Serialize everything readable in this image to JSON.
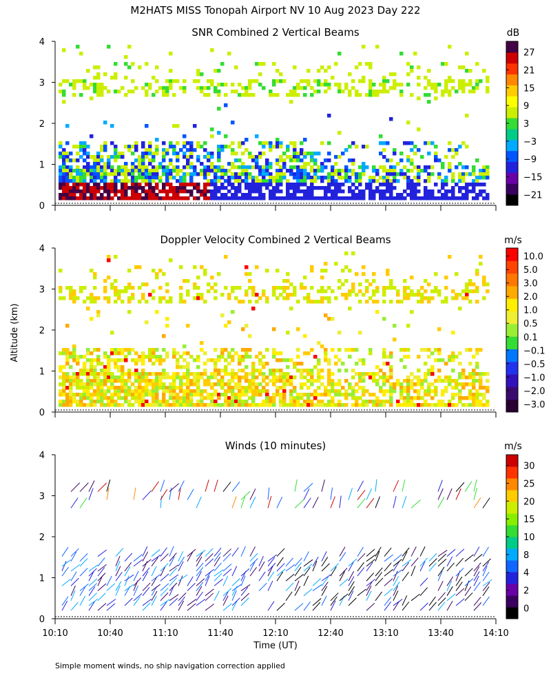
{
  "title": "M2HATS MISS Tonopah Airport NV  10 Aug 2023 Day 222",
  "ylabel": "Altitude (km)",
  "xlabel": "Time (UT)",
  "footnote": "Simple moment winds, no ship navigation correction applied",
  "chart_data": [
    {
      "type": "heatmap",
      "title": "SNR Combined 2 Vertical Beams",
      "colorbar_unit": "dB",
      "colorbar_ticks": [
        "27",
        "21",
        "15",
        "9",
        "3",
        "−3",
        "−9",
        "−15",
        "−21"
      ],
      "colorbar_colors": [
        "#000000",
        "#3a0060",
        "#6a00a8",
        "#2222dd",
        "#0055ff",
        "#00aaff",
        "#00cc88",
        "#33dd33",
        "#ccee00",
        "#ffff00",
        "#ffcc00",
        "#ff8800",
        "#ff3300",
        "#cc0000",
        "#440044"
      ],
      "xlim": [
        "10:10",
        "14:10"
      ],
      "ylim": [
        0,
        4
      ],
      "ytick_labels": [
        "0",
        "1",
        "2",
        "3",
        "4"
      ]
    },
    {
      "type": "heatmap",
      "title": "Doppler Velocity Combined 2 Vertical Beams",
      "colorbar_unit": "m/s",
      "colorbar_ticks": [
        "10.0",
        "5.0",
        "3.0",
        "2.0",
        "1.0",
        "0.5",
        "0.1",
        "−0.1",
        "−0.5",
        "−1.0",
        "−2.0",
        "−3.0"
      ],
      "colorbar_colors": [
        "#2a0033",
        "#3a0a70",
        "#3311bb",
        "#2233ee",
        "#0077ff",
        "#33dd33",
        "#99ee33",
        "#eeee33",
        "#ffee00",
        "#ffaa00",
        "#ff7700",
        "#ff4400",
        "#ff0000"
      ],
      "xlim": [
        "10:10",
        "14:10"
      ],
      "ylim": [
        0,
        4
      ],
      "ytick_labels": [
        "0",
        "1",
        "2",
        "3",
        "4"
      ]
    },
    {
      "type": "scatter",
      "title": "Winds (10 minutes)",
      "colorbar_unit": "m/s",
      "colorbar_ticks": [
        "30",
        "25",
        "20",
        "15",
        "10",
        "8",
        "4",
        "2",
        "0"
      ],
      "colorbar_colors": [
        "#000000",
        "#3a0060",
        "#6a00a8",
        "#2222dd",
        "#1166ff",
        "#00aaff",
        "#00cc88",
        "#33dd33",
        "#88ee00",
        "#ccee00",
        "#ffcc00",
        "#ff8800",
        "#ff3300",
        "#cc0000"
      ],
      "x_ticks": [
        "10:10",
        "10:40",
        "11:10",
        "11:40",
        "12:10",
        "12:40",
        "13:10",
        "13:40",
        "14:10"
      ],
      "xlim": [
        "10:10",
        "14:10"
      ],
      "ylim": [
        0,
        4
      ],
      "ytick_labels": [
        "0",
        "1",
        "2",
        "3",
        "4"
      ]
    }
  ]
}
